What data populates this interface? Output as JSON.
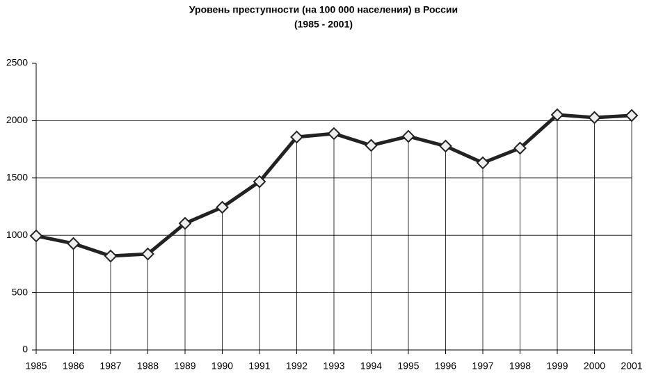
{
  "chart_data": {
    "type": "line",
    "title": "Уровень преступности (на 100 000 населения) в России",
    "subtitle": "(1985 - 2001)",
    "categories": [
      "1985",
      "1986",
      "1987",
      "1988",
      "1989",
      "1990",
      "1991",
      "1992",
      "1993",
      "1994",
      "1995",
      "1996",
      "1997",
      "1998",
      "1999",
      "2000",
      "2001"
    ],
    "values": [
      995,
      928,
      819,
      837,
      1104,
      1244,
      1468,
      1857,
      1887,
      1784,
      1863,
      1778,
      1632,
      1760,
      2051,
      2027,
      2045
    ],
    "color": "#222222",
    "ylim": [
      0,
      2500
    ],
    "yticks": [
      0,
      500,
      1000,
      1500,
      2000,
      2500
    ],
    "grid": true
  }
}
